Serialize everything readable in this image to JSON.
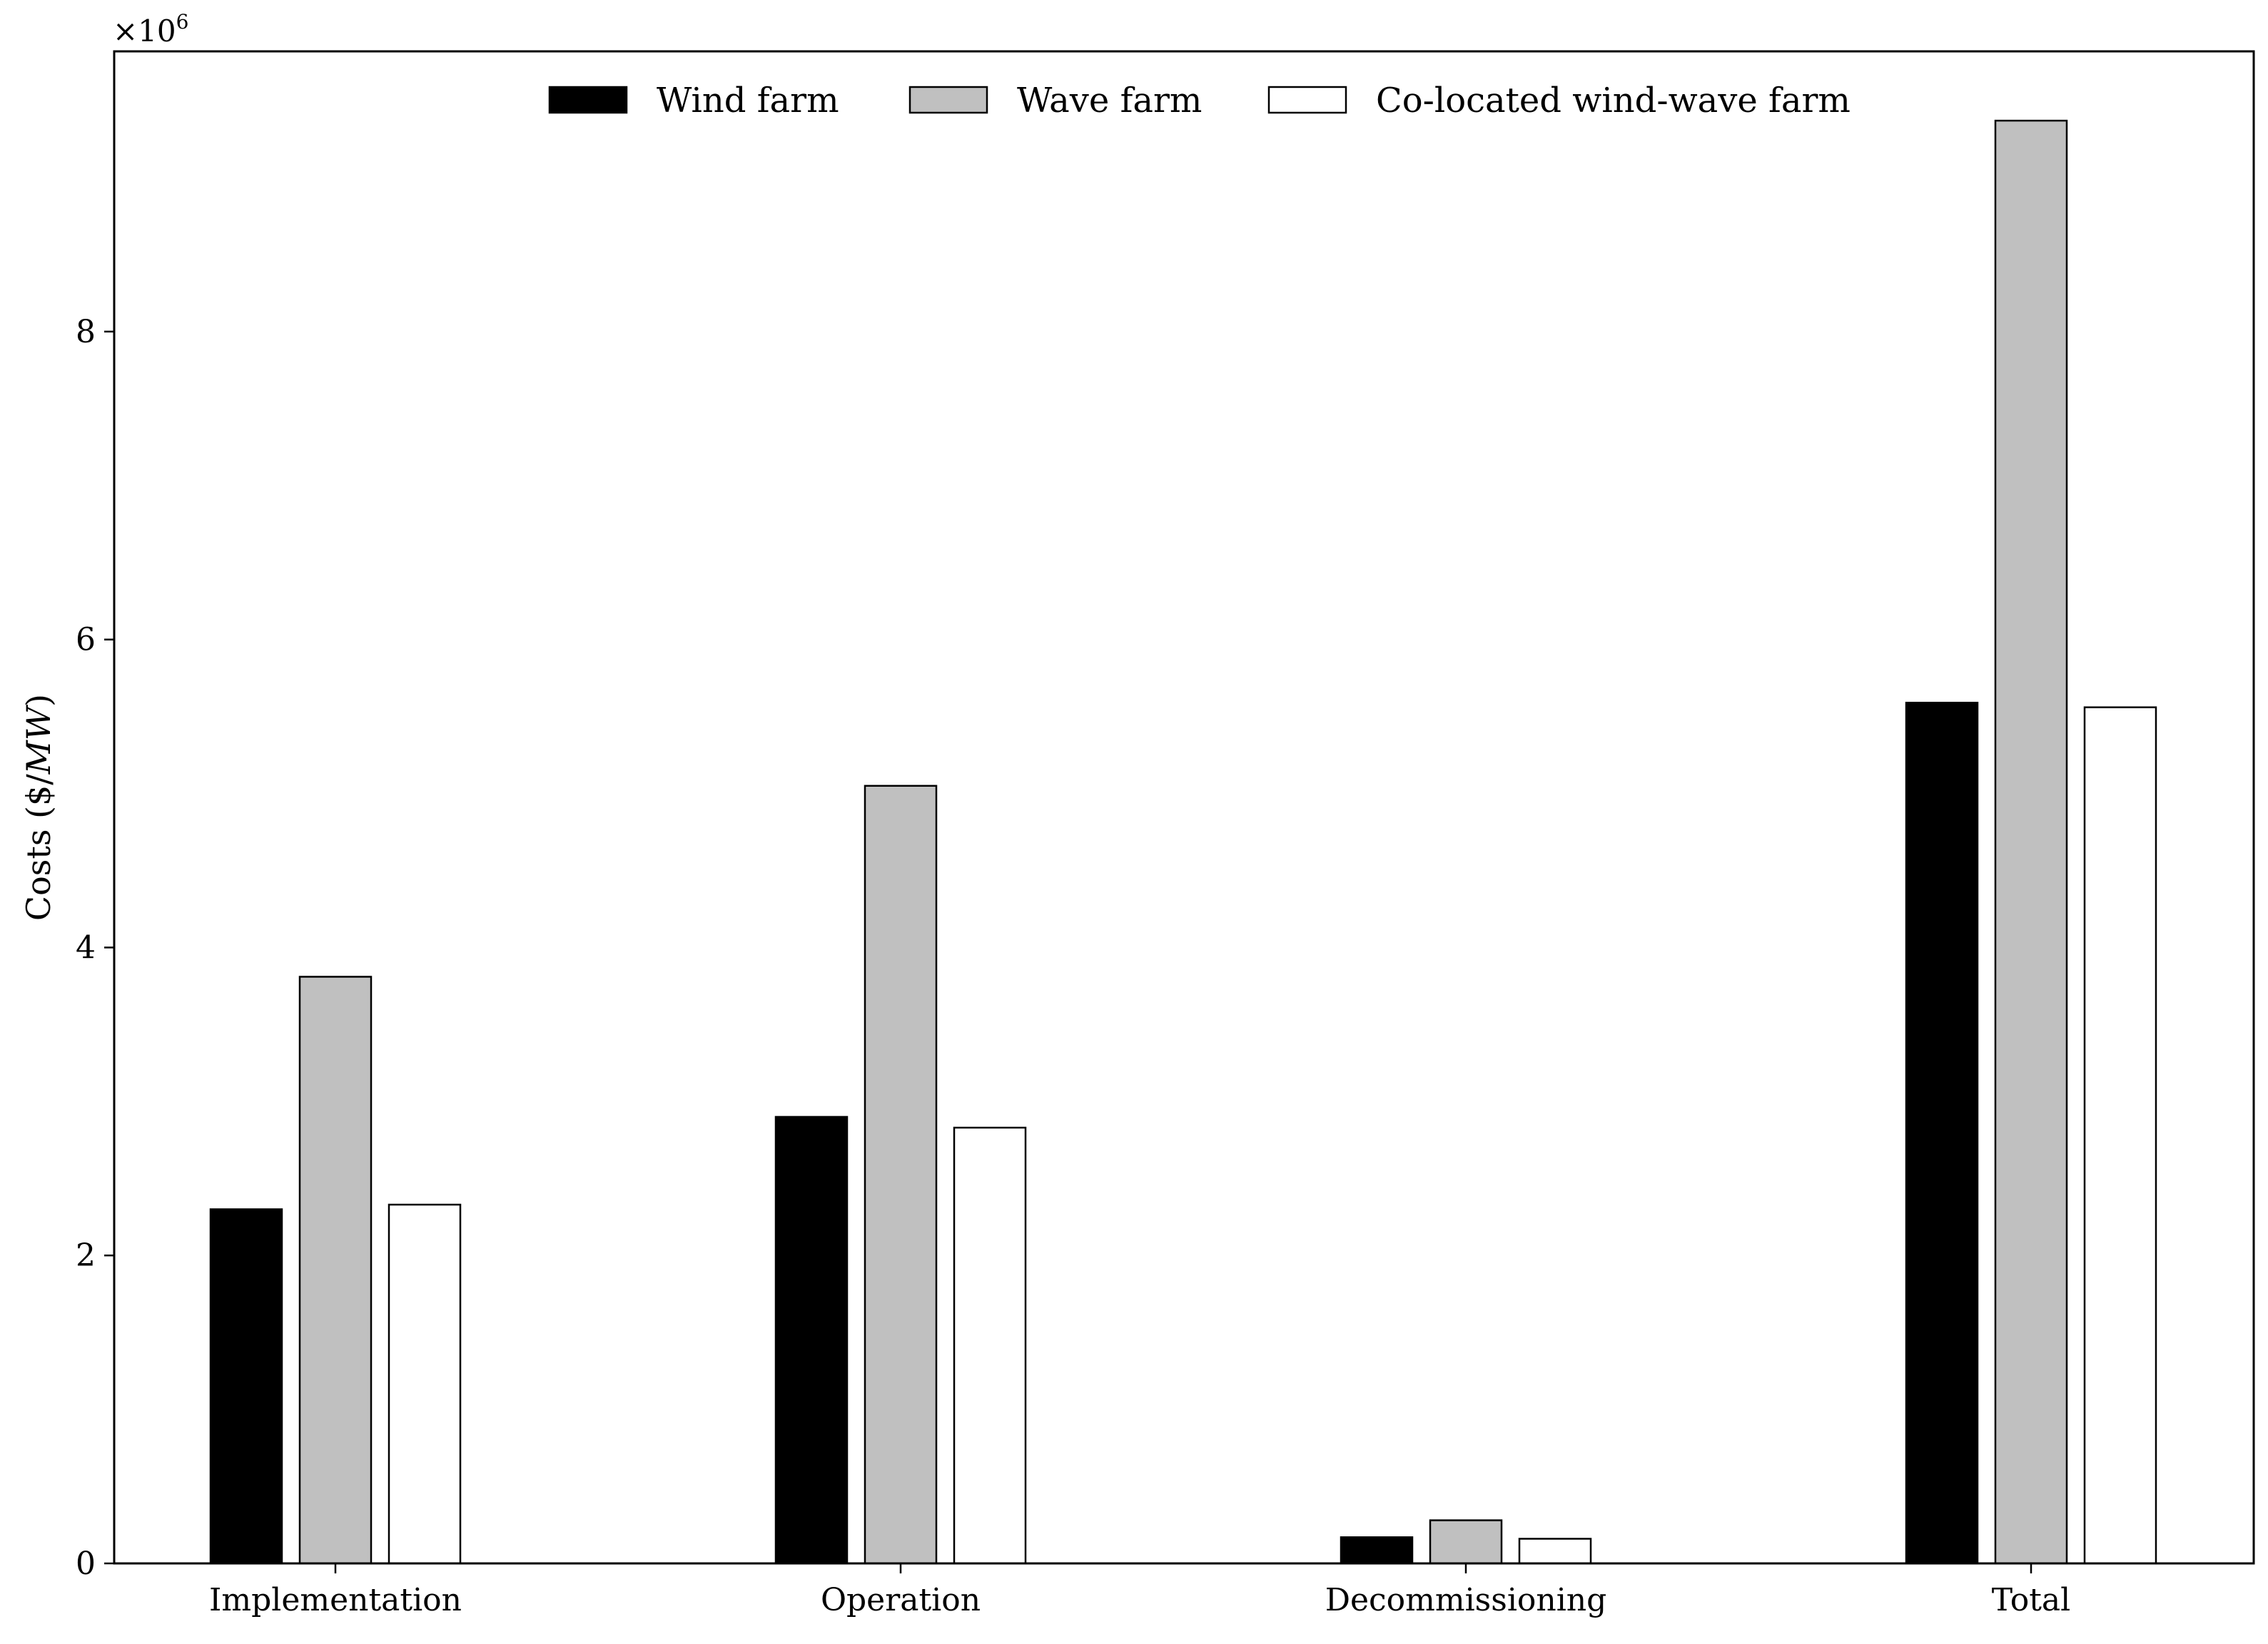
{
  "chart_data": {
    "type": "bar",
    "title": "",
    "xlabel": "",
    "ylabel": "Costs ($/MW)",
    "ylabel_plain": "Costs ($/",
    "ylabel_italic": "MW",
    "ylabel_close": ")",
    "y_scale_prefix": "×10",
    "y_scale_exponent": "6",
    "categories": [
      "Implementation",
      "Operation",
      "Decommissioning",
      "Total"
    ],
    "series": [
      {
        "name": "Wind farm",
        "color": "#000000",
        "values": [
          2300000,
          2900000,
          170000,
          5590000
        ]
      },
      {
        "name": "Wave farm",
        "color": "#c0c0c0",
        "values": [
          3810000,
          5050000,
          280000,
          9370000
        ]
      },
      {
        "name": "Co-located wind-wave farm",
        "color": "#ffffff",
        "values": [
          2330000,
          2830000,
          160000,
          5560000
        ]
      }
    ],
    "ylim": [
      0,
      9820000
    ],
    "yticks": [
      0,
      2,
      4,
      6,
      8
    ],
    "ytick_labels": [
      "0",
      "2",
      "4",
      "6",
      "8"
    ],
    "grid": false,
    "legend_position": "top-center"
  }
}
